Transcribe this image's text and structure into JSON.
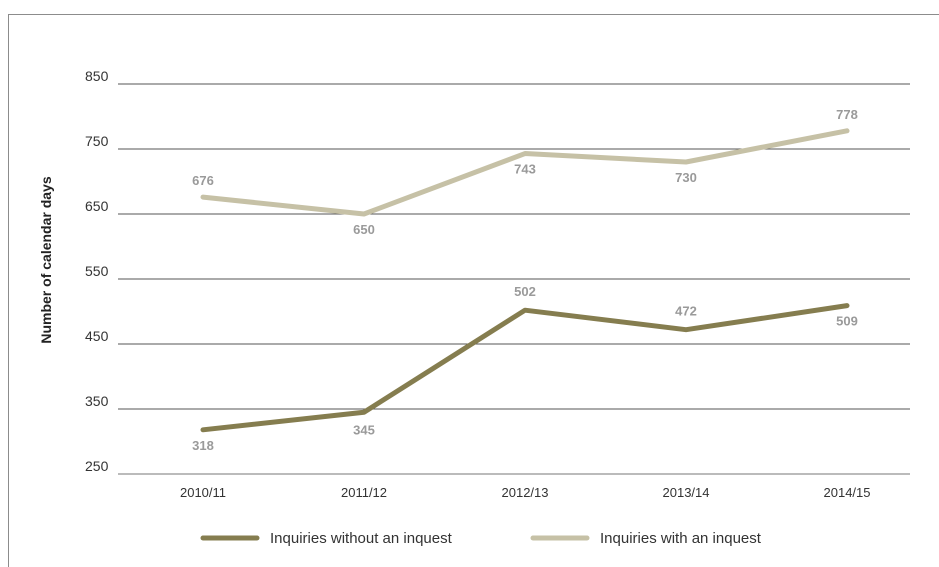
{
  "chart_data": {
    "type": "line",
    "title": "",
    "xlabel": "",
    "ylabel": "Number of calendar days",
    "categories": [
      "2010/11",
      "2011/12",
      "2012/13",
      "2013/14",
      "2014/15"
    ],
    "y_ticks": [
      250,
      350,
      450,
      550,
      650,
      750,
      850
    ],
    "ylim": [
      250,
      850
    ],
    "grid": "horizontal",
    "legend_position": "bottom",
    "series": [
      {
        "name": "Inquiries without an inquest",
        "color": "#857d4f",
        "values": [
          318,
          345,
          502,
          472,
          509
        ]
      },
      {
        "name": "Inquiries with an inquest",
        "color": "#c6c1a6",
        "values": [
          676,
          650,
          743,
          730,
          778
        ]
      }
    ]
  }
}
